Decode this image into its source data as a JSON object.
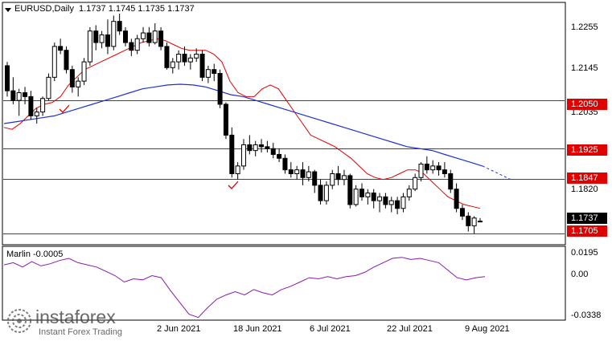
{
  "header": {
    "symbol": "EURUSD,Daily",
    "ohlc": "1.1737 1.1745 1.1735 1.1737"
  },
  "indicator": {
    "label": "Marlin -0.0005"
  },
  "price_axis": {
    "ticks": [
      "1.2255",
      "1.2145",
      "1.2035",
      "1.1820"
    ],
    "levels": [
      {
        "value": "1.2050",
        "price": 1.205
      },
      {
        "value": "1.1925",
        "price": 1.1925
      },
      {
        "value": "1.1847",
        "price": 1.1847
      },
      {
        "value": "1.1705",
        "price": 1.1705
      }
    ],
    "current": {
      "value": "1.1737",
      "price": 1.1737
    }
  },
  "indicator_axis": {
    "ticks": [
      "0.0195",
      "0.00",
      "-0.0338"
    ]
  },
  "date_axis": {
    "labels": [
      "2 Jun 2021",
      "18 Jun 2021",
      "6 Jul 2021",
      "22 Jul 2021",
      "9 Aug 2021"
    ]
  },
  "watermark": {
    "brand": "instaforex",
    "tagline": "Instant Forex Trading"
  },
  "colors": {
    "bull": "#ffffff",
    "bear": "#000000",
    "ma_fast": "#e00000",
    "ma_slow": "#2030d0",
    "level": "#e00000",
    "marlin": "#8a1aa8"
  },
  "chart_data": {
    "type": "candlestick",
    "ylim": [
      1.168,
      1.23
    ],
    "candles": [
      [
        1.214,
        1.215,
        1.206,
        1.2075
      ],
      [
        1.2075,
        1.211,
        1.204,
        1.205
      ],
      [
        1.205,
        1.208,
        1.201,
        1.207
      ],
      [
        1.207,
        1.2085,
        1.204,
        1.206
      ],
      [
        1.206,
        1.2075,
        1.2,
        1.201
      ],
      [
        1.201,
        1.203,
        1.199,
        1.202
      ],
      [
        1.202,
        1.206,
        1.201,
        1.2055
      ],
      [
        1.2055,
        1.212,
        1.205,
        1.211
      ],
      [
        1.211,
        1.22,
        1.21,
        1.219
      ],
      [
        1.219,
        1.221,
        1.217,
        1.218
      ],
      [
        1.218,
        1.219,
        1.212,
        1.213
      ],
      [
        1.213,
        1.214,
        1.207,
        1.2085
      ],
      [
        1.2085,
        1.211,
        1.206,
        1.21
      ],
      [
        1.21,
        1.216,
        1.209,
        1.215
      ],
      [
        1.215,
        1.224,
        1.214,
        1.223
      ],
      [
        1.223,
        1.2245,
        1.218,
        1.22
      ],
      [
        1.22,
        1.223,
        1.2185,
        1.222
      ],
      [
        1.222,
        1.226,
        1.217,
        1.219
      ],
      [
        1.219,
        1.227,
        1.218,
        1.2255
      ],
      [
        1.2255,
        1.2275,
        1.222,
        1.223
      ],
      [
        1.223,
        1.224,
        1.219,
        1.22
      ],
      [
        1.22,
        1.221,
        1.2165,
        1.218
      ],
      [
        1.218,
        1.222,
        1.217,
        1.221
      ],
      [
        1.221,
        1.224,
        1.22,
        1.2225
      ],
      [
        1.2225,
        1.224,
        1.219,
        1.22
      ],
      [
        1.22,
        1.225,
        1.2195,
        1.223
      ],
      [
        1.223,
        1.224,
        1.218,
        1.219
      ],
      [
        1.219,
        1.22,
        1.213,
        1.2135
      ],
      [
        1.2135,
        1.216,
        1.212,
        1.215
      ],
      [
        1.215,
        1.218,
        1.213,
        1.217
      ],
      [
        1.217,
        1.219,
        1.214,
        1.215
      ],
      [
        1.215,
        1.217,
        1.213,
        1.216
      ],
      [
        1.216,
        1.2185,
        1.215,
        1.217
      ],
      [
        1.217,
        1.218,
        1.21,
        1.211
      ],
      [
        1.211,
        1.214,
        1.2095,
        1.213
      ],
      [
        1.213,
        1.2145,
        1.21,
        1.212
      ],
      [
        1.212,
        1.213,
        1.203,
        1.204
      ],
      [
        1.204,
        1.2045,
        1.195,
        1.196
      ],
      [
        1.196,
        1.198,
        1.185,
        1.186
      ],
      [
        1.186,
        1.189,
        1.1845,
        1.188
      ],
      [
        1.188,
        1.195,
        1.187,
        1.1935
      ],
      [
        1.1935,
        1.196,
        1.191,
        1.192
      ],
      [
        1.192,
        1.1945,
        1.1905,
        1.1935
      ],
      [
        1.1935,
        1.195,
        1.1915,
        1.193
      ],
      [
        1.193,
        1.1945,
        1.1915,
        1.1925
      ],
      [
        1.1925,
        1.194,
        1.19,
        1.191
      ],
      [
        1.191,
        1.1925,
        1.189,
        1.19
      ],
      [
        1.19,
        1.191,
        1.186,
        1.187
      ],
      [
        1.187,
        1.189,
        1.185,
        1.186
      ],
      [
        1.186,
        1.188,
        1.1845,
        1.187
      ],
      [
        1.187,
        1.189,
        1.183,
        1.185
      ],
      [
        1.185,
        1.188,
        1.184,
        1.1865
      ],
      [
        1.1865,
        1.187,
        1.181,
        1.183
      ],
      [
        1.183,
        1.1845,
        1.178,
        1.179
      ],
      [
        1.179,
        1.184,
        1.178,
        1.183
      ],
      [
        1.183,
        1.187,
        1.182,
        1.186
      ],
      [
        1.186,
        1.188,
        1.183,
        1.1845
      ],
      [
        1.1845,
        1.187,
        1.183,
        1.1855
      ],
      [
        1.1855,
        1.186,
        1.177,
        1.178
      ],
      [
        1.178,
        1.183,
        1.1775,
        1.182
      ],
      [
        1.182,
        1.1835,
        1.179,
        1.18
      ],
      [
        1.18,
        1.182,
        1.178,
        1.181
      ],
      [
        1.181,
        1.182,
        1.177,
        1.179
      ],
      [
        1.179,
        1.181,
        1.176,
        1.18
      ],
      [
        1.18,
        1.181,
        1.177,
        1.178
      ],
      [
        1.178,
        1.18,
        1.176,
        1.179
      ],
      [
        1.179,
        1.18,
        1.1755,
        1.177
      ],
      [
        1.177,
        1.181,
        1.176,
        1.18
      ],
      [
        1.18,
        1.183,
        1.179,
        1.182
      ],
      [
        1.182,
        1.186,
        1.1815,
        1.185
      ],
      [
        1.185,
        1.189,
        1.184,
        1.1885
      ],
      [
        1.1885,
        1.1905,
        1.186,
        1.187
      ],
      [
        1.187,
        1.1895,
        1.186,
        1.188
      ],
      [
        1.188,
        1.189,
        1.1855,
        1.187
      ],
      [
        1.187,
        1.189,
        1.185,
        1.186
      ],
      [
        1.186,
        1.187,
        1.181,
        1.182
      ],
      [
        1.182,
        1.1835,
        1.176,
        1.177
      ],
      [
        1.177,
        1.178,
        1.174,
        1.175
      ],
      [
        1.175,
        1.176,
        1.171,
        1.1725
      ],
      [
        1.1725,
        1.175,
        1.1705,
        1.1745
      ],
      [
        1.1737,
        1.1745,
        1.1735,
        1.1737
      ]
    ],
    "ma_fast": [
      1.198,
      1.1975,
      1.199,
      1.201,
      1.203,
      1.204,
      1.2045,
      1.206,
      1.209,
      1.211,
      1.213,
      1.214,
      1.215,
      1.216,
      1.217,
      1.218,
      1.219,
      1.22,
      1.2205,
      1.221,
      1.2205,
      1.2195,
      1.2185,
      1.218,
      1.218,
      1.218,
      1.217,
      1.215,
      1.21,
      1.207,
      1.206,
      1.206,
      1.208,
      1.209,
      1.208,
      1.205,
      1.202,
      1.199,
      1.196,
      1.195,
      1.194,
      1.193,
      1.1915,
      1.19,
      1.188,
      1.186,
      1.185,
      1.1845,
      1.185,
      1.186,
      1.187,
      1.187,
      1.186,
      1.184,
      1.182,
      1.18,
      1.179,
      1.178,
      1.1775,
      1.177
    ],
    "ma_slow": [
      1.199,
      1.1995,
      1.2,
      1.2005,
      1.201,
      1.202,
      1.203,
      1.204,
      1.205,
      1.206,
      1.207,
      1.208,
      1.2085,
      1.209,
      1.2092,
      1.209,
      1.2085,
      1.2075,
      1.2065,
      1.206,
      1.205,
      1.204,
      1.203,
      1.202,
      1.201,
      1.2,
      1.199,
      1.198,
      1.197,
      1.196,
      1.195,
      1.194,
      1.193,
      1.1925,
      1.192,
      1.191,
      1.19,
      1.189,
      1.188
    ],
    "marlin": [
      0.01,
      0.012,
      0.008,
      0.013,
      0.009,
      0.011,
      0.014,
      0.016,
      0.012,
      0.01,
      0.008,
      0.004,
      0.0,
      -0.006,
      -0.003,
      -0.004,
      0.0,
      -0.002,
      -0.014,
      -0.025,
      -0.036,
      -0.039,
      -0.03,
      -0.022,
      -0.018,
      -0.015,
      -0.018,
      -0.013,
      -0.016,
      -0.018,
      -0.013,
      -0.01,
      -0.006,
      -0.002,
      -0.003,
      -0.001,
      -0.003,
      -0.001,
      0.0,
      0.003,
      0.008,
      0.012,
      0.016,
      0.017,
      0.015,
      0.016,
      0.014,
      0.012,
      0.005,
      -0.002,
      -0.004,
      -0.002,
      -0.001
    ],
    "marlin_ylim": [
      -0.04,
      0.025
    ]
  }
}
